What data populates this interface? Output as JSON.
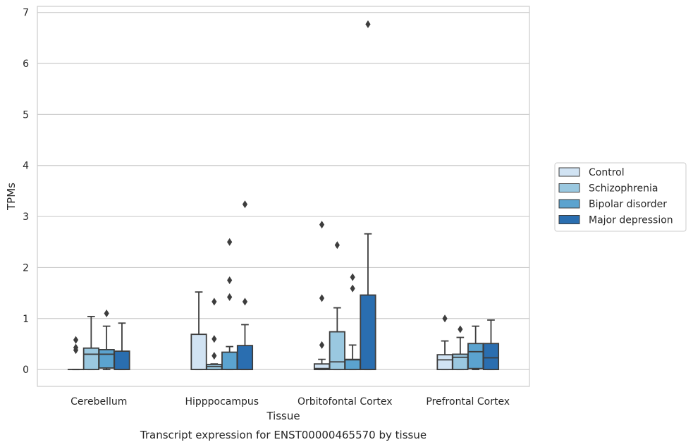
{
  "caption": "Transcript expression for ENST00000465570 by tissue",
  "chart_data": {
    "type": "box",
    "title": "",
    "xlabel": "Tissue",
    "ylabel": "TPMs",
    "ylim": [
      -0.33,
      7.12
    ],
    "yticks": [
      0,
      1,
      2,
      3,
      4,
      5,
      6,
      7
    ],
    "grid": true,
    "legend_position": "right",
    "categories": [
      "Cerebellum",
      "Hipppocampus",
      "Orbitofontal Cortex",
      "Prefrontal Cortex"
    ],
    "series": [
      {
        "name": "Control",
        "color": "#d1e3f3",
        "boxes": [
          {
            "whislo": 0,
            "q1": 0,
            "med": 0,
            "q3": 0,
            "whishi": 0,
            "fliers": [
              0.38,
              0.43,
              0.58
            ]
          },
          {
            "whislo": 0,
            "q1": 0,
            "med": 0,
            "q3": 0.69,
            "whishi": 1.52,
            "fliers": []
          },
          {
            "whislo": 0,
            "q1": 0,
            "med": 0.02,
            "q3": 0.11,
            "whishi": 0.2,
            "fliers": [
              0.48,
              1.4,
              2.84
            ]
          },
          {
            "whislo": 0,
            "q1": 0,
            "med": 0.19,
            "q3": 0.29,
            "whishi": 0.56,
            "fliers": [
              1.0
            ]
          }
        ]
      },
      {
        "name": "Schizophrenia",
        "color": "#9ac8e0",
        "boxes": [
          {
            "whislo": 0,
            "q1": 0,
            "med": 0.3,
            "q3": 0.42,
            "whishi": 1.04,
            "fliers": []
          },
          {
            "whislo": 0,
            "q1": 0,
            "med": 0.06,
            "q3": 0.1,
            "whishi": 0.11,
            "fliers": [
              0.27,
              0.6,
              1.33
            ]
          },
          {
            "whislo": 0,
            "q1": 0,
            "med": 0.15,
            "q3": 0.74,
            "whishi": 1.21,
            "fliers": [
              2.44
            ]
          },
          {
            "whislo": 0,
            "q1": 0,
            "med": 0.24,
            "q3": 0.3,
            "whishi": 0.63,
            "fliers": [
              0.79
            ]
          }
        ]
      },
      {
        "name": "Bipolar disorder",
        "color": "#5ba3cf",
        "boxes": [
          {
            "whislo": 0,
            "q1": 0.03,
            "med": 0.3,
            "q3": 0.39,
            "whishi": 0.85,
            "fliers": [
              1.1
            ]
          },
          {
            "whislo": 0,
            "q1": 0,
            "med": 0,
            "q3": 0.34,
            "whishi": 0.45,
            "fliers": [
              1.42,
              1.75,
              2.5
            ]
          },
          {
            "whislo": 0,
            "q1": 0,
            "med": 0.19,
            "q3": 0.2,
            "whishi": 0.48,
            "fliers": [
              1.59,
              1.81
            ]
          },
          {
            "whislo": 0,
            "q1": 0.02,
            "med": 0.35,
            "q3": 0.51,
            "whishi": 0.85,
            "fliers": []
          }
        ]
      },
      {
        "name": "Major depression",
        "color": "#2a6eb0",
        "boxes": [
          {
            "whislo": 0,
            "q1": 0,
            "med": 0,
            "q3": 0.36,
            "whishi": 0.91,
            "fliers": []
          },
          {
            "whislo": 0,
            "q1": 0,
            "med": 0,
            "q3": 0.47,
            "whishi": 0.88,
            "fliers": [
              1.33,
              3.24
            ]
          },
          {
            "whislo": 0,
            "q1": 0,
            "med": 0,
            "q3": 1.46,
            "whishi": 2.66,
            "fliers": [
              6.77
            ]
          },
          {
            "whislo": 0,
            "q1": 0,
            "med": 0.23,
            "q3": 0.51,
            "whishi": 0.97,
            "fliers": []
          }
        ]
      }
    ]
  }
}
